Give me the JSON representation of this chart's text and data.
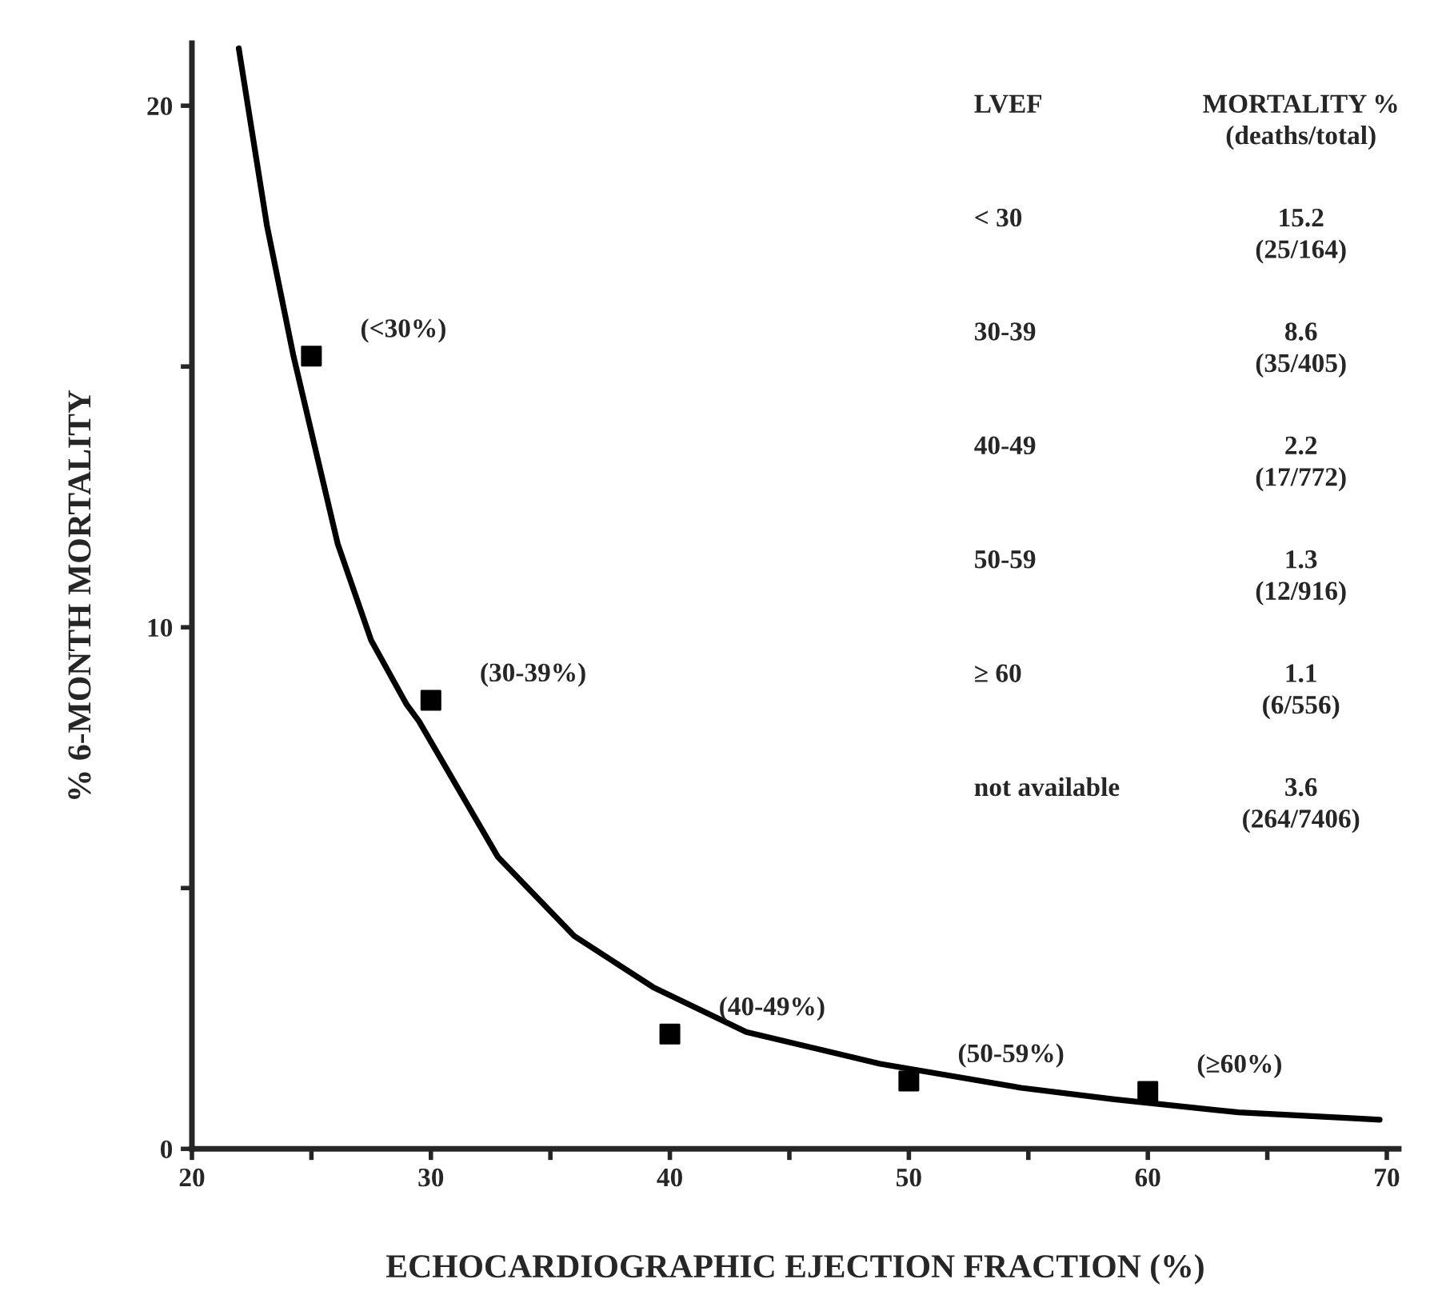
{
  "chart_data": {
    "type": "scatter",
    "xlabel": "ECHOCARDIOGRAPHIC EJECTION FRACTION (%)",
    "ylabel": "% 6-MONTH MORTALITY",
    "series": [
      {
        "color": "#000000",
        "marker": "square",
        "x": [
          25,
          30,
          40,
          50,
          60
        ],
        "values": [
          15.2,
          8.6,
          2.2,
          1.3,
          1.1
        ]
      },
      {
        "type": "line",
        "color": "#000000",
        "marker": "none",
        "line_style": "solid",
        "x": [
          21.96,
          23.14,
          24.25,
          26.1,
          27.5,
          28.97,
          29.5,
          32.8,
          36.0,
          39.3,
          43.2,
          48.8,
          54.7,
          58.6,
          63.8,
          68.8,
          69.7
        ],
        "values": [
          21.1,
          17.7,
          15.2,
          11.6,
          9.75,
          8.53,
          8.2,
          5.6,
          4.08,
          3.1,
          2.24,
          1.63,
          1.17,
          0.95,
          0.7,
          0.58,
          0.56
        ]
      }
    ],
    "xlim": [
      20,
      70.5
    ],
    "ylim": [
      0,
      21.2
    ],
    "xticks": [
      20,
      {
        "value": 25,
        "label": null
      },
      30,
      {
        "value": 35,
        "label": null
      },
      40,
      {
        "value": 45,
        "label": null
      },
      50,
      {
        "value": 55,
        "label": null
      },
      60,
      {
        "value": 65,
        "label": null
      },
      70
    ],
    "yticks": [
      0,
      {
        "value": 5,
        "label": null
      },
      10,
      {
        "value": 15,
        "label": null
      },
      20
    ],
    "grid": false,
    "legend": false,
    "annotations": [
      {
        "text": "(<30%)",
        "x": 25,
        "y": 15.2
      },
      {
        "text": "(30-39%)",
        "x": 30,
        "y": 8.6
      },
      {
        "text": "(40-49%)",
        "x": 40,
        "y": 2.2
      },
      {
        "text": "(50-59%)",
        "x": 50,
        "y": 1.3
      },
      {
        "text": "(≥60%)",
        "x": 60,
        "y": 1.1
      },
      "LVEF",
      "MORTALITY %\n(deaths/total)",
      "< 30",
      "15.2\n(25/164)",
      "30-39",
      "8.6\n(35/405)",
      "40-49",
      "2.2\n(17/772)",
      "50-59",
      "1.3\n(12/916)",
      "≥ 60",
      "1.1\n(6/556)",
      "not available",
      "3.6\n(264/7406)"
    ]
  }
}
